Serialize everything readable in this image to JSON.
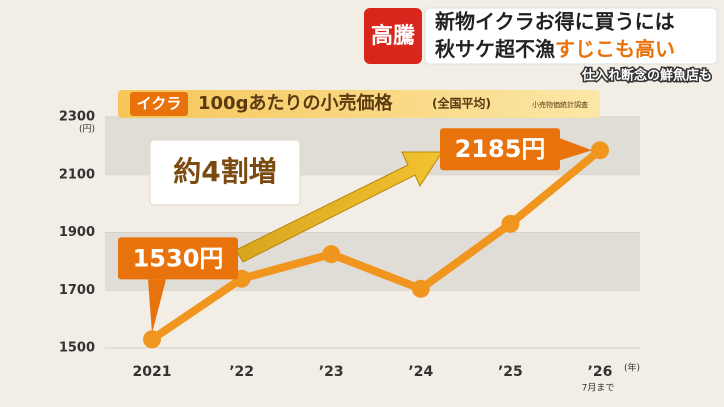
{
  "banner": {
    "tag": "高騰",
    "line1": "新物イクラお得に買うには",
    "line2_a": "秋サケ超不漁",
    "line2_b": "すじこも高い",
    "subcaption": "仕入れ断念の鮮魚店も"
  },
  "chart_data": {
    "type": "line",
    "tag": "イクラ",
    "title": "100gあたりの小売価格",
    "subtitle": "(全国平均)",
    "source": "小売物価統計調査",
    "y_unit": "(円)",
    "x_unit": "(年)",
    "x_note": "7月まで",
    "annotation": "約4割増",
    "categories": [
      "2021",
      "’22",
      "’23",
      "’24",
      "’25",
      "’26"
    ],
    "values": [
      1530,
      1740,
      1825,
      1705,
      1930,
      2185
    ],
    "value_labels": [
      "1530円",
      null,
      null,
      null,
      null,
      "2185円"
    ],
    "color": "#f0961e",
    "ylim": [
      1500,
      2300
    ],
    "yticks": [
      1500,
      1700,
      1900,
      2100,
      2300
    ],
    "grid": true
  }
}
